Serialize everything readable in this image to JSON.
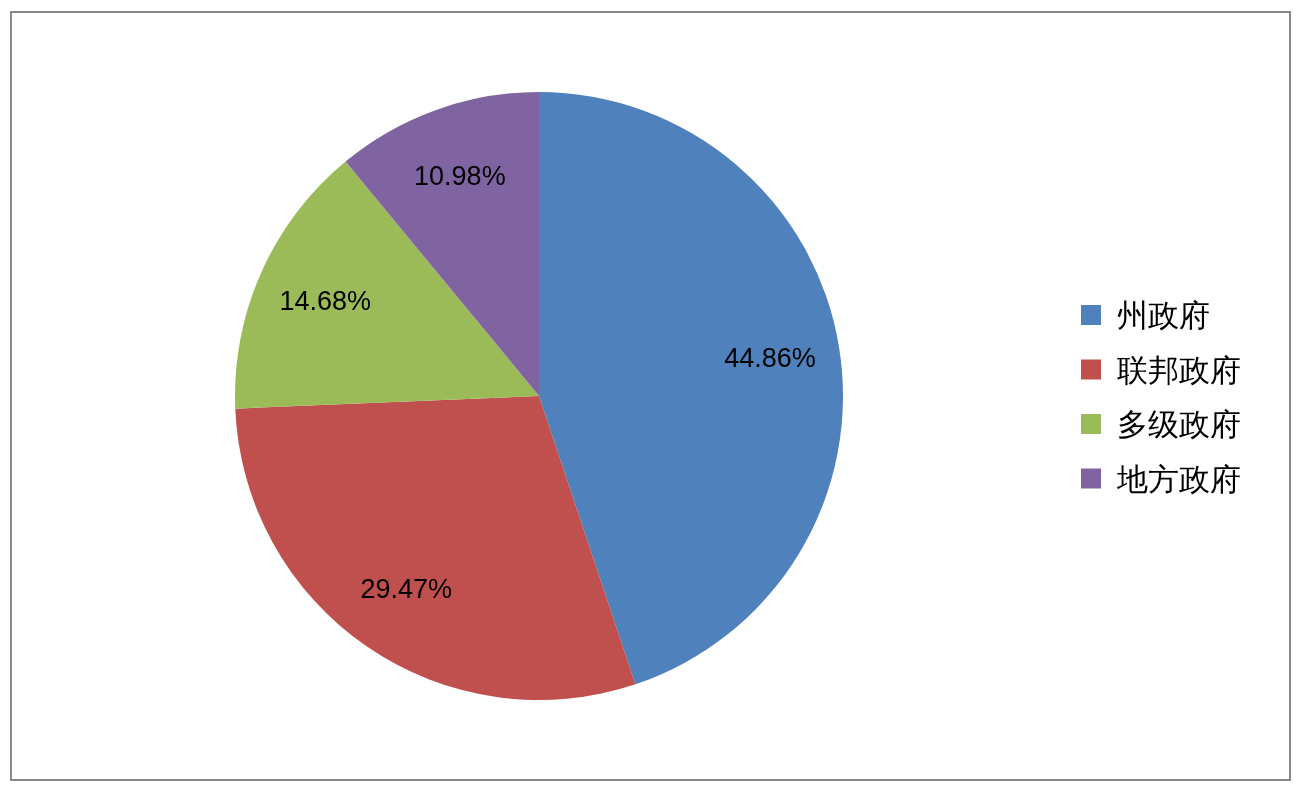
{
  "chart_data": {
    "type": "pie",
    "categories": [
      "州政府",
      "联邦政府",
      "多级政府",
      "地方政府"
    ],
    "values": [
      44.86,
      29.47,
      14.68,
      10.98
    ],
    "colors": [
      "#4f81bd",
      "#c0504d",
      "#9bbb59",
      "#8064a2"
    ],
    "value_labels": [
      "44.86%",
      "29.47%",
      "14.68%",
      "10.98%"
    ],
    "legend": "right"
  }
}
